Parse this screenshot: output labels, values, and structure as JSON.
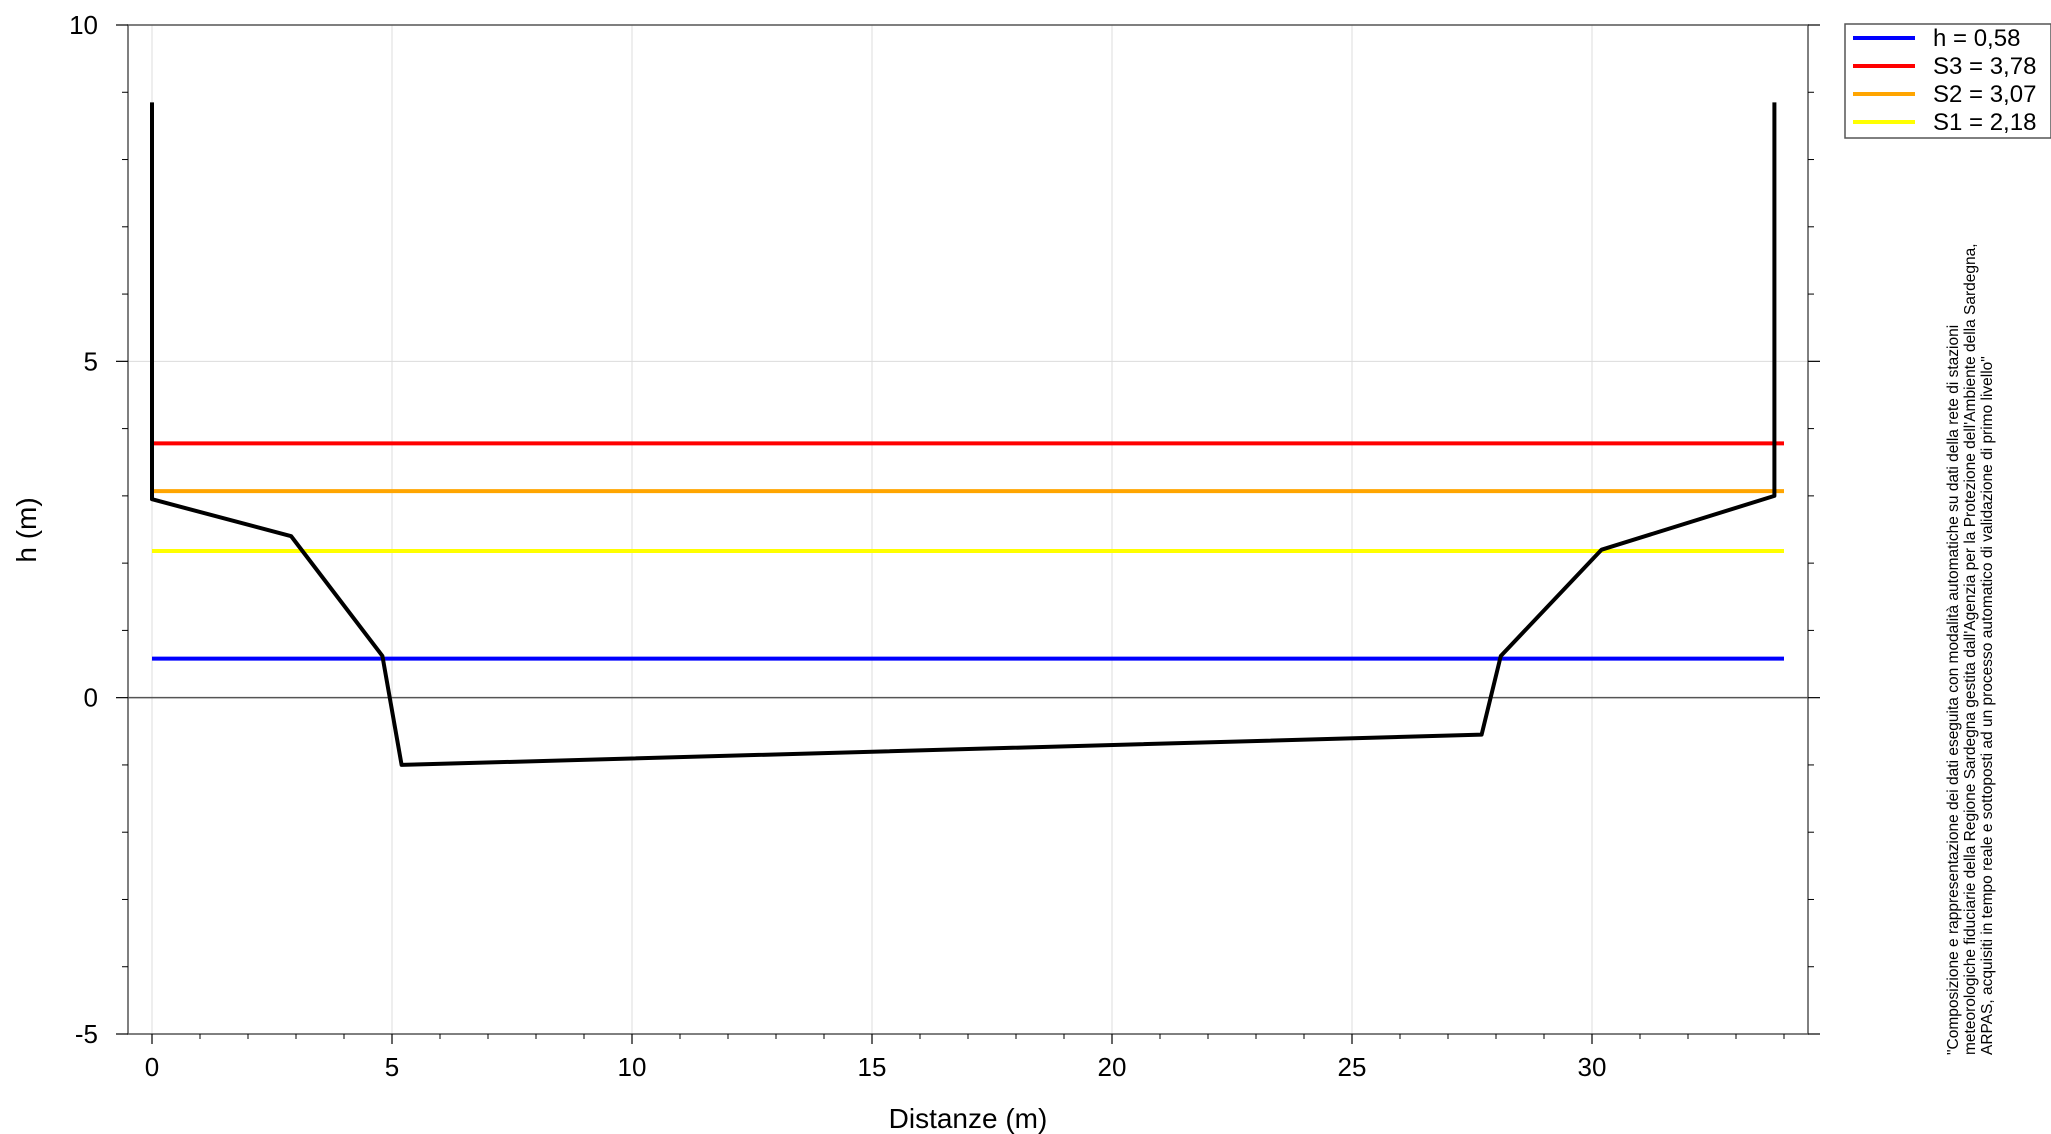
{
  "chart_data": {
    "type": "line",
    "xlabel": "Distanze (m)",
    "ylabel": "h (m)",
    "xlim": [
      -0.5,
      34.5
    ],
    "ylim": [
      -5,
      10
    ],
    "x_ticks": [
      0,
      5,
      10,
      15,
      20,
      25,
      30
    ],
    "y_ticks": [
      -5,
      0,
      5,
      10
    ],
    "grid": true,
    "legend_position": "top-right",
    "series": [
      {
        "name": "h = 0,58",
        "color": "#0000ff",
        "values": [
          0.58,
          0.58
        ],
        "x": [
          0,
          34
        ]
      },
      {
        "name": "S3 = 3,78",
        "color": "#ff0000",
        "values": [
          3.78,
          3.78
        ],
        "x": [
          0,
          34
        ]
      },
      {
        "name": "S2 = 3,07",
        "color": "#ffa500",
        "values": [
          3.07,
          3.07
        ],
        "x": [
          0,
          34
        ]
      },
      {
        "name": "S1 = 2,18",
        "color": "#ffff00",
        "values": [
          2.18,
          2.18
        ],
        "x": [
          0,
          34
        ]
      }
    ],
    "profile": {
      "color": "#000000",
      "x": [
        0,
        0,
        2.9,
        4.8,
        5.2,
        27.7,
        28.1,
        30.2,
        33.8,
        33.8
      ],
      "y": [
        8.85,
        2.95,
        2.4,
        0.62,
        -1.0,
        -0.55,
        0.62,
        2.2,
        3.0,
        8.85
      ]
    }
  },
  "note": {
    "line1": "\"Composizione e rappresentazione dei dati eseguita con modalità automatiche su dati della rete di stazioni",
    "line2": "meteorologiche fiduciarie della Regione Sardegna gestita dall'Agenzia per la Protezione dell'Ambiente della Sardegna,",
    "line3": "ARPAS, acquisiti in tempo reale e sottoposti ad un processo automatico di validazione di primo livello\""
  }
}
